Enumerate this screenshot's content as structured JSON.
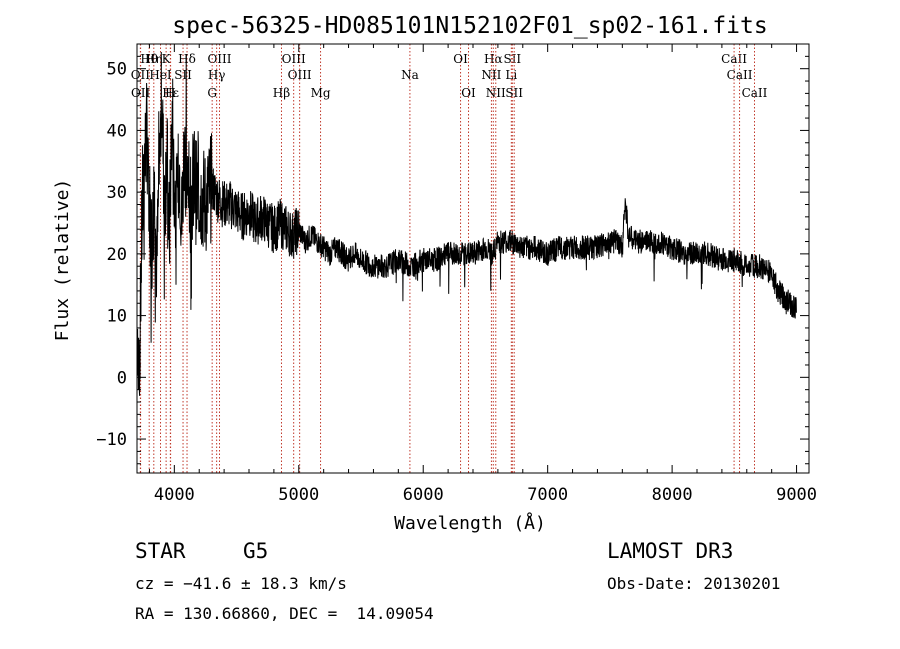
{
  "chart_data": {
    "type": "line",
    "title": "spec-56325-HD085101N152102F01_sp02-161.fits",
    "xlabel": "Wavelength (Å)",
    "ylabel": "Flux (relative)",
    "xlim": [
      3700,
      9100
    ],
    "ylim": [
      -15.5,
      54
    ],
    "xticks": [
      4000,
      5000,
      6000,
      7000,
      8000,
      9000
    ],
    "xtick_labels": [
      "4000",
      "5000",
      "6000",
      "7000",
      "8000",
      "9000"
    ],
    "yticks": [
      -10,
      0,
      10,
      20,
      30,
      40,
      50
    ],
    "ytick_labels": [
      "−10",
      "0",
      "10",
      "20",
      "30",
      "40",
      "50"
    ],
    "spectrum": {
      "name": "flux",
      "x": [
        3700,
        3720,
        3740,
        3760,
        3780,
        3800,
        3820,
        3840,
        3860,
        3880,
        3900,
        3920,
        3940,
        3960,
        3980,
        4000,
        4020,
        4040,
        4060,
        4080,
        4100,
        4120,
        4140,
        4160,
        4180,
        4200,
        4250,
        4300,
        4350,
        4400,
        4450,
        4500,
        4550,
        4600,
        4650,
        4700,
        4750,
        4800,
        4850,
        4900,
        4950,
        5000,
        5050,
        5100,
        5150,
        5200,
        5250,
        5300,
        5350,
        5400,
        5450,
        5500,
        5600,
        5700,
        5800,
        5900,
        6000,
        6100,
        6200,
        6300,
        6400,
        6500,
        6560,
        6600,
        6700,
        6800,
        6900,
        7000,
        7100,
        7200,
        7300,
        7400,
        7500,
        7550,
        7600,
        7620,
        7650,
        7700,
        7800,
        7900,
        8000,
        8100,
        8200,
        8300,
        8400,
        8500,
        8600,
        8700,
        8800,
        8850,
        8900,
        8950,
        9000
      ],
      "y": [
        10,
        2,
        25,
        35,
        40,
        28,
        22,
        30,
        18,
        34,
        45,
        28,
        36,
        22,
        42,
        30,
        27,
        35,
        25,
        38,
        32,
        28,
        30,
        33,
        29,
        30,
        28,
        31,
        29,
        28,
        28,
        27,
        26,
        27,
        25,
        26,
        25,
        24,
        25,
        24,
        23,
        24,
        22,
        23,
        22,
        21,
        20,
        21,
        20,
        19,
        20,
        19,
        18,
        18,
        19,
        18,
        19,
        19,
        20,
        20,
        20,
        21,
        20,
        22,
        22,
        21,
        21,
        20,
        21,
        21,
        21,
        21,
        22,
        22,
        21,
        29,
        23,
        22,
        22,
        22,
        21,
        20,
        20,
        20,
        19,
        19,
        18,
        18,
        17,
        14,
        13,
        12,
        11
      ],
      "color": "#000000"
    },
    "lines": [
      {
        "label": "Hθ",
        "x": 3798,
        "row": 1
      },
      {
        "label": "Hη",
        "x": 3835,
        "row": 1
      },
      {
        "label": "K",
        "x": 3934,
        "row": 1
      },
      {
        "label": "Hδ",
        "x": 4102,
        "row": 1
      },
      {
        "label": "OIII",
        "x": 4363,
        "row": 1
      },
      {
        "label": "OIII",
        "x": 4959,
        "row": 1
      },
      {
        "label": "OI",
        "x": 6300,
        "row": 1
      },
      {
        "label": "Hα",
        "x": 6563,
        "row": 1
      },
      {
        "label": "SII",
        "x": 6716,
        "row": 1
      },
      {
        "label": "CaII",
        "x": 8498,
        "row": 1
      },
      {
        "label": "OII",
        "x": 3727,
        "row": 2
      },
      {
        "label": "HeI",
        "x": 3889,
        "row": 2
      },
      {
        "label": "SII",
        "x": 4070,
        "row": 2
      },
      {
        "label": "Hγ",
        "x": 4340,
        "row": 2
      },
      {
        "label": "OIII",
        "x": 5007,
        "row": 2
      },
      {
        "label": "Na",
        "x": 5893,
        "row": 2
      },
      {
        "label": "NII",
        "x": 6548,
        "row": 2
      },
      {
        "label": "Li",
        "x": 6708,
        "row": 2
      },
      {
        "label": "CaII",
        "x": 8542,
        "row": 2
      },
      {
        "label": "OII",
        "x": 3729,
        "row": 3
      },
      {
        "label": "Hε",
        "x": 3970,
        "row": 3
      },
      {
        "label": "H",
        "x": 3968,
        "row": 3
      },
      {
        "label": "G",
        "x": 4304,
        "row": 3
      },
      {
        "label": "Hβ",
        "x": 4861,
        "row": 3
      },
      {
        "label": "Mg",
        "x": 5175,
        "row": 3
      },
      {
        "label": "OI",
        "x": 6364,
        "row": 3
      },
      {
        "label": "NII",
        "x": 6583,
        "row": 3
      },
      {
        "label": "SII",
        "x": 6731,
        "row": 3
      },
      {
        "label": "CaII",
        "x": 8662,
        "row": 3
      }
    ],
    "line_color": "#c0392b"
  },
  "footer": {
    "object_type": "STAR",
    "subclass": "G5",
    "redshift": "cz = −41.6 ± 18.3 km/s",
    "coords": "RA = 130.66860, DEC =  14.09054",
    "survey": "LAMOST DR3",
    "obs_date": "Obs-Date: 20130201"
  }
}
